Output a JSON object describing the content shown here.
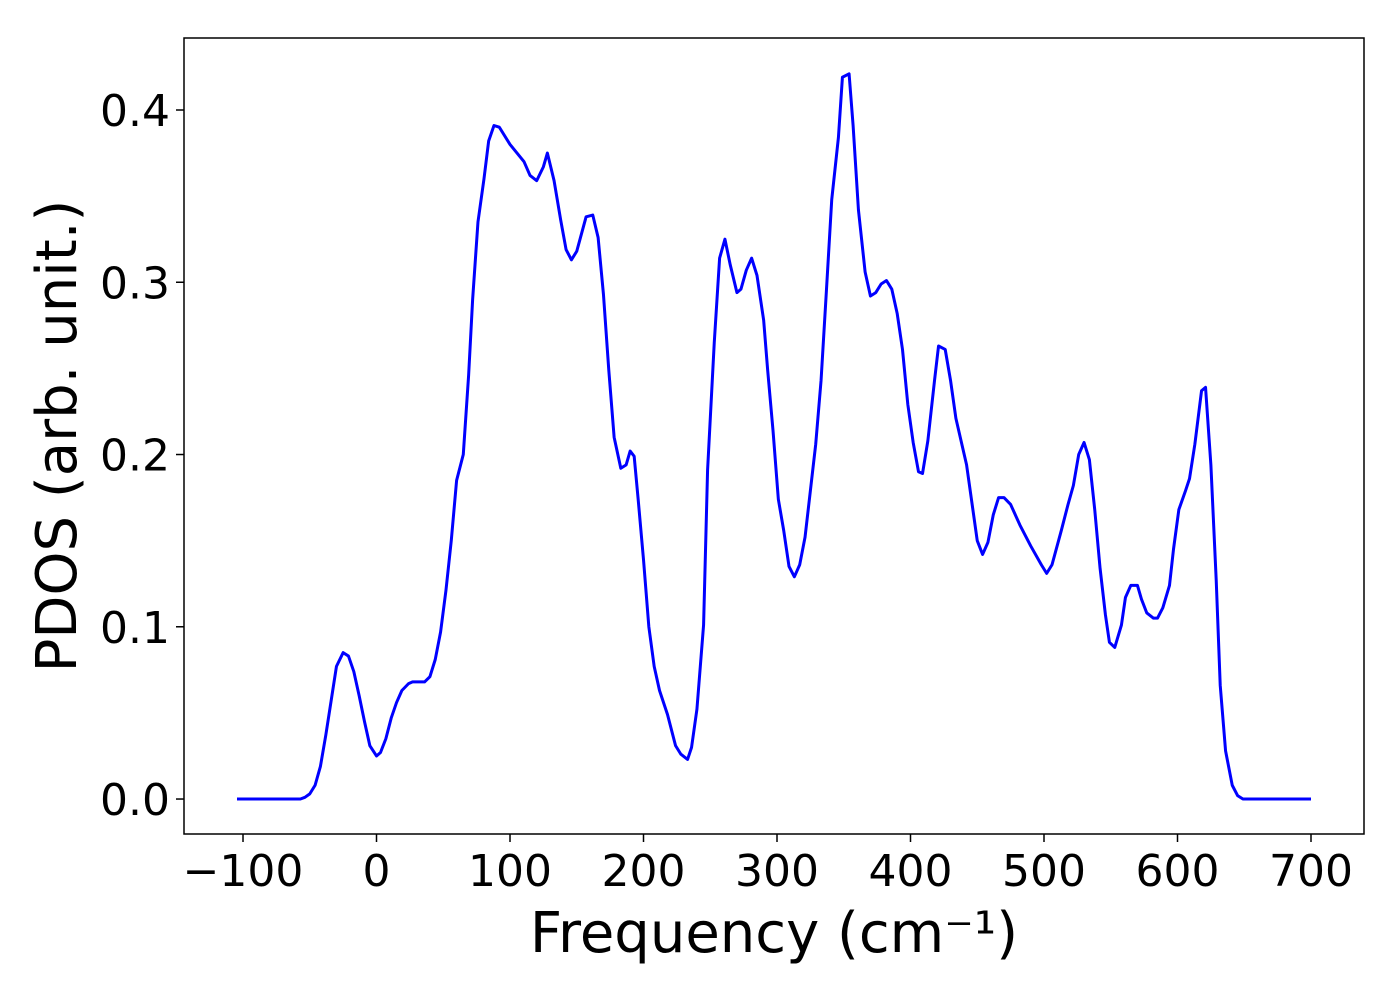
{
  "chart_data": {
    "type": "line",
    "xlabel": "Frequency (cm⁻¹)",
    "ylabel": "PDOS (arb. unit.)",
    "color": "#0000ff",
    "x": [
      -104.5,
      -57,
      -53.6,
      -50,
      -46,
      -42,
      -38,
      -34,
      -30,
      -25,
      -21,
      -17,
      -13,
      -9,
      -5,
      0,
      3,
      7,
      11,
      15,
      19,
      24,
      27,
      32,
      36,
      40,
      44,
      48,
      52,
      56,
      60,
      65,
      69,
      72,
      76,
      80.5,
      84,
      88,
      92,
      100,
      110.5,
      115,
      120,
      125,
      128,
      133,
      138,
      142,
      146,
      150,
      157,
      162,
      166,
      170,
      174,
      178,
      183,
      187,
      190,
      193,
      196,
      200,
      204,
      208,
      212,
      218,
      224,
      228,
      233,
      236,
      240,
      245,
      248,
      253,
      257,
      261,
      265,
      270,
      273,
      277,
      281,
      285,
      290,
      293,
      297,
      301,
      305,
      309,
      313,
      317,
      321,
      325,
      329,
      333,
      337,
      341,
      346,
      349,
      354,
      357,
      361,
      366,
      370,
      374,
      378,
      382,
      386,
      390,
      394,
      398,
      402,
      406,
      409,
      413,
      418,
      421,
      426,
      430,
      434,
      442,
      450,
      454,
      458,
      462,
      466,
      470,
      475,
      482,
      490,
      498,
      502,
      506,
      513,
      518,
      522,
      526,
      530,
      534,
      538,
      542,
      546,
      549,
      553,
      558,
      561,
      565,
      570,
      573,
      577,
      582,
      585,
      589,
      594,
      597,
      601,
      606,
      609,
      613,
      618,
      621,
      625,
      629,
      632,
      636,
      641,
      645,
      649,
      700
    ],
    "values": [
      0,
      0,
      0.001,
      0.003,
      0.008,
      0.019,
      0.037,
      0.057,
      0.077,
      0.085,
      0.083,
      0.074,
      0.06,
      0.045,
      0.031,
      0.025,
      0.027,
      0.035,
      0.047,
      0.056,
      0.063,
      0.067,
      0.068,
      0.068,
      0.068,
      0.071,
      0.081,
      0.097,
      0.121,
      0.15,
      0.185,
      0.2,
      0.246,
      0.29,
      0.335,
      0.36,
      0.382,
      0.391,
      0.39,
      0.38,
      0.37,
      0.362,
      0.359,
      0.367,
      0.375,
      0.359,
      0.336,
      0.319,
      0.313,
      0.318,
      0.338,
      0.339,
      0.326,
      0.293,
      0.249,
      0.21,
      0.192,
      0.194,
      0.202,
      0.199,
      0.174,
      0.139,
      0.1,
      0.077,
      0.063,
      0.049,
      0.031,
      0.026,
      0.023,
      0.03,
      0.052,
      0.101,
      0.191,
      0.265,
      0.314,
      0.325,
      0.31,
      0.294,
      0.296,
      0.307,
      0.314,
      0.304,
      0.278,
      0.249,
      0.214,
      0.174,
      0.156,
      0.135,
      0.129,
      0.136,
      0.152,
      0.179,
      0.206,
      0.243,
      0.295,
      0.348,
      0.384,
      0.419,
      0.421,
      0.391,
      0.342,
      0.306,
      0.292,
      0.294,
      0.299,
      0.301,
      0.296,
      0.282,
      0.261,
      0.229,
      0.207,
      0.19,
      0.189,
      0.208,
      0.243,
      0.263,
      0.261,
      0.243,
      0.221,
      0.194,
      0.15,
      0.142,
      0.149,
      0.165,
      0.175,
      0.175,
      0.171,
      0.159,
      0.147,
      0.136,
      0.131,
      0.136,
      0.156,
      0.171,
      0.182,
      0.2,
      0.207,
      0.197,
      0.168,
      0.134,
      0.107,
      0.091,
      0.088,
      0.101,
      0.117,
      0.124,
      0.124,
      0.116,
      0.108,
      0.105,
      0.105,
      0.111,
      0.124,
      0.145,
      0.168,
      0.179,
      0.186,
      0.206,
      0.237,
      0.239,
      0.194,
      0.127,
      0.066,
      0.028,
      0.008,
      0.002,
      0,
      0
    ],
    "xlim": [
      -144.2,
      739.7
    ],
    "ylim": [
      -0.0203,
      0.4418
    ],
    "xticks": [
      {
        "value": -100,
        "label": "−100"
      },
      0,
      100,
      200,
      300,
      400,
      500,
      600,
      700
    ],
    "yticks": [
      {
        "value": 0,
        "label": "0.0"
      },
      0.1,
      0.2,
      0.3,
      0.4
    ]
  }
}
